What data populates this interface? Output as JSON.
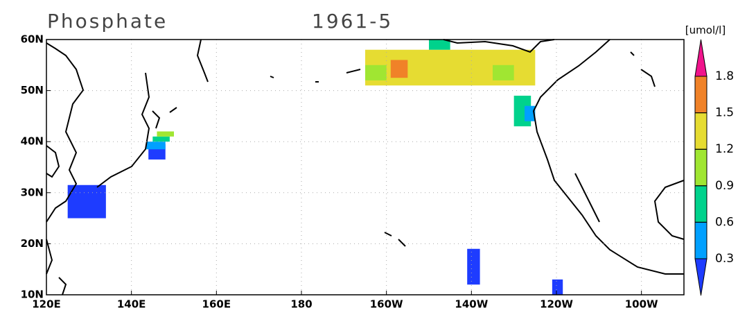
{
  "chart_data": {
    "type": "map",
    "title": "Phosphate",
    "subtitle": "1961-5",
    "unit": "[umol/l]",
    "xlim": [
      120,
      270
    ],
    "ylim": [
      10,
      60
    ],
    "xticks": [
      {
        "value": 120,
        "label": "120E"
      },
      {
        "value": 140,
        "label": "140E"
      },
      {
        "value": 160,
        "label": "160E"
      },
      180,
      {
        "value": 200,
        "label": "160W"
      },
      {
        "value": 220,
        "label": "140W"
      },
      {
        "value": 240,
        "label": "120W"
      },
      {
        "value": 260,
        "label": "100W"
      }
    ],
    "yticks": [
      {
        "value": 10,
        "label": "10N"
      },
      {
        "value": 20,
        "label": "20N"
      },
      {
        "value": 30,
        "label": "30N"
      },
      {
        "value": 40,
        "label": "40N"
      },
      {
        "value": 50,
        "label": "50N"
      },
      {
        "value": 60,
        "label": "60N"
      }
    ],
    "grid": true,
    "levels": [
      0.3,
      0.6,
      0.9,
      1.2,
      1.5,
      1.8
    ],
    "colors": [
      "#1e3cff",
      "#00a0ff",
      "#00d28c",
      "#a0e632",
      "#e6dc32",
      "#f08228",
      "#f0148c"
    ],
    "patches": [
      {
        "lon": [
          125,
          134
        ],
        "lat": [
          25,
          31.5
        ],
        "value": 0.2
      },
      {
        "lon": [
          144,
          148
        ],
        "lat": [
          36.5,
          39.5
        ],
        "value": 0.2
      },
      {
        "lon": [
          143.5,
          148
        ],
        "lat": [
          38.5,
          40
        ],
        "value": 0.45
      },
      {
        "lon": [
          145,
          149
        ],
        "lat": [
          40,
          41
        ],
        "value": 0.8
      },
      {
        "lon": [
          146,
          150
        ],
        "lat": [
          41,
          42
        ],
        "value": 1.0
      },
      {
        "lon": [
          219,
          222
        ],
        "lat": [
          12,
          19
        ],
        "value": 0.2
      },
      {
        "lon": [
          239,
          241.5
        ],
        "lat": [
          10,
          13
        ],
        "value": 0.2
      },
      {
        "lon": [
          195,
          235
        ],
        "lat": [
          51,
          58
        ],
        "value": 1.3
      },
      {
        "lon": [
          195,
          200
        ],
        "lat": [
          52,
          55
        ],
        "value": 1.0
      },
      {
        "lon": [
          201,
          205
        ],
        "lat": [
          52.5,
          56
        ],
        "value": 1.6
      },
      {
        "lon": [
          210,
          215
        ],
        "lat": [
          58,
          60
        ],
        "value": 0.8
      },
      {
        "lon": [
          225,
          230
        ],
        "lat": [
          52,
          55
        ],
        "value": 1.0
      },
      {
        "lon": [
          230,
          234
        ],
        "lat": [
          43,
          49
        ],
        "value": 0.8
      },
      {
        "lon": [
          232.5,
          235
        ],
        "lat": [
          44,
          47
        ],
        "value": 0.45
      }
    ]
  }
}
